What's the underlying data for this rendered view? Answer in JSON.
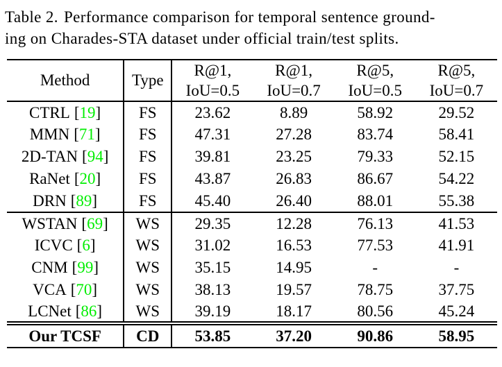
{
  "caption": {
    "label": "Table 2.",
    "line1_rest": "Performance comparison for temporal sentence ground-",
    "line2": "ing on Charades-STA dataset under official train/test splits."
  },
  "colors": {
    "citation_green": "#00EE00",
    "text": "#000000",
    "background": "#ffffff"
  },
  "table": {
    "header": {
      "method": "Method",
      "type": "Type",
      "metrics": [
        {
          "top": "R@1,",
          "bottom": "IoU=0.5"
        },
        {
          "top": "R@1,",
          "bottom": "IoU=0.7"
        },
        {
          "top": "R@5,",
          "bottom": "IoU=0.5"
        },
        {
          "top": "R@5,",
          "bottom": "IoU=0.7"
        }
      ]
    },
    "punct": {
      "open": "[",
      "close": "]"
    },
    "rows": [
      {
        "method": "CTRL",
        "cite": "19",
        "type": "FS",
        "values": [
          "23.62",
          "8.89",
          "58.92",
          "29.52"
        ]
      },
      {
        "method": "MMN",
        "cite": "71",
        "type": "FS",
        "values": [
          "47.31",
          "27.28",
          "83.74",
          "58.41"
        ]
      },
      {
        "method": "2D-TAN",
        "cite": "94",
        "type": "FS",
        "values": [
          "39.81",
          "23.25",
          "79.33",
          "52.15"
        ]
      },
      {
        "method": "RaNet",
        "cite": "20",
        "type": "FS",
        "values": [
          "43.87",
          "26.83",
          "86.67",
          "54.22"
        ]
      },
      {
        "method": "DRN",
        "cite": "89",
        "type": "FS",
        "values": [
          "45.40",
          "26.40",
          "88.01",
          "55.38"
        ]
      },
      {
        "method": "WSTAN",
        "cite": "69",
        "type": "WS",
        "values": [
          "29.35",
          "12.28",
          "76.13",
          "41.53"
        ]
      },
      {
        "method": "ICVC",
        "cite": "6",
        "type": "WS",
        "values": [
          "31.02",
          "16.53",
          "77.53",
          "41.91"
        ]
      },
      {
        "method": "CNM",
        "cite": "99",
        "type": "WS",
        "values": [
          "35.15",
          "14.95",
          "-",
          "-"
        ]
      },
      {
        "method": "VCA",
        "cite": "70",
        "type": "WS",
        "values": [
          "38.13",
          "19.57",
          "78.75",
          "37.75"
        ]
      },
      {
        "method": "LCNet",
        "cite": "86",
        "type": "WS",
        "values": [
          "39.19",
          "18.17",
          "80.56",
          "45.24"
        ]
      }
    ],
    "final_row": {
      "method": "Our TCSF",
      "type": "CD",
      "values": [
        "53.85",
        "37.20",
        "90.86",
        "58.95"
      ]
    }
  }
}
